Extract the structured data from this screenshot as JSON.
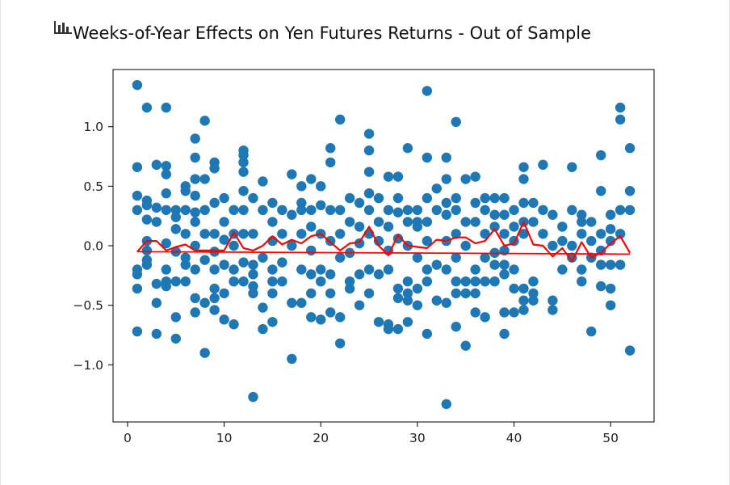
{
  "chart_data": {
    "type": "scatter",
    "title": "Weeks-of-Year Effects on Yen Futures Returns - Out of Sample",
    "xlabel": "",
    "ylabel": "",
    "xlim": [
      -1.5,
      54.5
    ],
    "ylim": [
      -1.48,
      1.48
    ],
    "x_ticks": [
      0,
      10,
      20,
      30,
      40,
      50
    ],
    "x_tick_labels": [
      "0",
      "10",
      "20",
      "30",
      "40",
      "50"
    ],
    "y_ticks": [
      -1.0,
      -0.5,
      0.0,
      0.5,
      1.0
    ],
    "y_tick_labels": [
      "−1.0",
      "−0.5",
      "0.0",
      "0.5",
      "1.0"
    ],
    "grid": false,
    "colors": {
      "scatter": "#1f77b4",
      "mean_line": "#ff0000",
      "fit_line": "#ff0000"
    },
    "scatter_series": {
      "points": [
        [
          1,
          1.35
        ],
        [
          1,
          0.66
        ],
        [
          1,
          0.42
        ],
        [
          1,
          0.3
        ],
        [
          1,
          -0.2
        ],
        [
          1,
          -0.24
        ],
        [
          1,
          -0.36
        ],
        [
          1,
          -0.72
        ],
        [
          2,
          1.16
        ],
        [
          2,
          0.38
        ],
        [
          2,
          0.34
        ],
        [
          2,
          0.22
        ],
        [
          2,
          0.04
        ],
        [
          2,
          -0.04
        ],
        [
          2,
          -0.12
        ],
        [
          2,
          -0.16
        ],
        [
          3,
          0.68
        ],
        [
          3,
          0.32
        ],
        [
          3,
          0.2
        ],
        [
          3,
          -0.32
        ],
        [
          3,
          -0.48
        ],
        [
          3,
          -0.74
        ],
        [
          4,
          1.16
        ],
        [
          4,
          0.67
        ],
        [
          4,
          0.6
        ],
        [
          4,
          0.44
        ],
        [
          4,
          0.3
        ],
        [
          4,
          0.02
        ],
        [
          4,
          -0.2
        ],
        [
          4,
          -0.3
        ],
        [
          4,
          -0.34
        ],
        [
          5,
          0.3
        ],
        [
          5,
          0.24
        ],
        [
          5,
          0.14
        ],
        [
          5,
          -0.05
        ],
        [
          5,
          -0.3
        ],
        [
          5,
          -0.6
        ],
        [
          5,
          -0.78
        ],
        [
          6,
          0.5
        ],
        [
          6,
          0.46
        ],
        [
          6,
          0.3
        ],
        [
          6,
          0.1
        ],
        [
          6,
          -0.1
        ],
        [
          6,
          -0.16
        ],
        [
          6,
          -0.3
        ],
        [
          7,
          0.9
        ],
        [
          7,
          0.74
        ],
        [
          7,
          0.56
        ],
        [
          7,
          0.42
        ],
        [
          7,
          0.28
        ],
        [
          7,
          0.2
        ],
        [
          7,
          0.0
        ],
        [
          7,
          -0.2
        ],
        [
          7,
          -0.44
        ],
        [
          7,
          -0.56
        ],
        [
          8,
          1.05
        ],
        [
          8,
          0.56
        ],
        [
          8,
          0.3
        ],
        [
          8,
          0.1
        ],
        [
          8,
          -0.12
        ],
        [
          8,
          -0.48
        ],
        [
          8,
          -0.9
        ],
        [
          9,
          0.7
        ],
        [
          9,
          0.65
        ],
        [
          9,
          0.36
        ],
        [
          9,
          0.1
        ],
        [
          9,
          -0.05
        ],
        [
          9,
          -0.2
        ],
        [
          9,
          -0.36
        ],
        [
          9,
          -0.44
        ],
        [
          9,
          -0.54
        ],
        [
          10,
          0.4
        ],
        [
          10,
          0.2
        ],
        [
          10,
          0.05
        ],
        [
          10,
          -0.16
        ],
        [
          10,
          -0.4
        ],
        [
          10,
          -0.62
        ],
        [
          11,
          0.3
        ],
        [
          11,
          0.1
        ],
        [
          11,
          0.0
        ],
        [
          11,
          -0.2
        ],
        [
          11,
          -0.3
        ],
        [
          11,
          -0.66
        ],
        [
          12,
          0.8
        ],
        [
          12,
          0.76
        ],
        [
          12,
          0.7
        ],
        [
          12,
          0.62
        ],
        [
          12,
          0.46
        ],
        [
          12,
          0.3
        ],
        [
          12,
          0.1
        ],
        [
          12,
          -0.14
        ],
        [
          12,
          -0.3
        ],
        [
          13,
          0.4
        ],
        [
          13,
          0.1
        ],
        [
          13,
          -0.16
        ],
        [
          13,
          -0.24
        ],
        [
          13,
          -0.34
        ],
        [
          13,
          -0.4
        ],
        [
          13,
          -1.27
        ],
        [
          14,
          0.54
        ],
        [
          14,
          0.3
        ],
        [
          14,
          -0.1
        ],
        [
          14,
          -0.52
        ],
        [
          14,
          -0.7
        ],
        [
          15,
          0.36
        ],
        [
          15,
          0.2
        ],
        [
          15,
          0.04
        ],
        [
          15,
          -0.2
        ],
        [
          15,
          -0.3
        ],
        [
          15,
          -0.4
        ],
        [
          15,
          -0.64
        ],
        [
          16,
          0.3
        ],
        [
          16,
          0.1
        ],
        [
          16,
          -0.14
        ],
        [
          16,
          -0.3
        ],
        [
          17,
          0.6
        ],
        [
          17,
          0.26
        ],
        [
          17,
          0.0
        ],
        [
          17,
          -0.48
        ],
        [
          17,
          -0.95
        ],
        [
          18,
          0.5
        ],
        [
          18,
          0.36
        ],
        [
          18,
          0.3
        ],
        [
          18,
          0.1
        ],
        [
          18,
          -0.2
        ],
        [
          18,
          -0.48
        ],
        [
          19,
          0.56
        ],
        [
          19,
          0.3
        ],
        [
          19,
          0.16
        ],
        [
          19,
          -0.04
        ],
        [
          19,
          -0.24
        ],
        [
          19,
          -0.4
        ],
        [
          19,
          -0.6
        ],
        [
          20,
          0.5
        ],
        [
          20,
          0.34
        ],
        [
          20,
          0.1
        ],
        [
          20,
          -0.2
        ],
        [
          20,
          -0.3
        ],
        [
          20,
          -0.62
        ],
        [
          21,
          0.82
        ],
        [
          21,
          0.7
        ],
        [
          21,
          0.3
        ],
        [
          21,
          0.04
        ],
        [
          21,
          -0.24
        ],
        [
          21,
          -0.4
        ],
        [
          21,
          -0.56
        ],
        [
          22,
          1.06
        ],
        [
          22,
          0.3
        ],
        [
          22,
          0.1
        ],
        [
          22,
          -0.1
        ],
        [
          22,
          -0.6
        ],
        [
          22,
          -0.82
        ],
        [
          23,
          0.4
        ],
        [
          23,
          0.2
        ],
        [
          23,
          -0.06
        ],
        [
          23,
          -0.3
        ],
        [
          23,
          -0.36
        ],
        [
          24,
          0.36
        ],
        [
          24,
          0.16
        ],
        [
          24,
          0.02
        ],
        [
          24,
          -0.24
        ],
        [
          24,
          -0.5
        ],
        [
          25,
          0.94
        ],
        [
          25,
          0.8
        ],
        [
          25,
          0.62
        ],
        [
          25,
          0.44
        ],
        [
          25,
          0.3
        ],
        [
          25,
          0.1
        ],
        [
          25,
          -0.2
        ],
        [
          25,
          -0.4
        ],
        [
          26,
          0.4
        ],
        [
          26,
          0.2
        ],
        [
          26,
          0.04
        ],
        [
          26,
          -0.24
        ],
        [
          26,
          -0.64
        ],
        [
          27,
          0.58
        ],
        [
          27,
          0.3
        ],
        [
          27,
          0.16
        ],
        [
          27,
          -0.04
        ],
        [
          27,
          -0.2
        ],
        [
          27,
          -0.66
        ],
        [
          27,
          -0.7
        ],
        [
          28,
          0.58
        ],
        [
          28,
          0.4
        ],
        [
          28,
          0.28
        ],
        [
          28,
          0.06
        ],
        [
          28,
          -0.36
        ],
        [
          28,
          -0.44
        ],
        [
          28,
          -0.7
        ],
        [
          29,
          0.82
        ],
        [
          29,
          0.3
        ],
        [
          29,
          0.2
        ],
        [
          29,
          0.0
        ],
        [
          29,
          -0.3
        ],
        [
          29,
          -0.4
        ],
        [
          29,
          -0.46
        ],
        [
          29,
          -0.64
        ],
        [
          30,
          0.3
        ],
        [
          30,
          0.2
        ],
        [
          30,
          0.16
        ],
        [
          30,
          -0.1
        ],
        [
          30,
          -0.36
        ],
        [
          30,
          -0.5
        ],
        [
          31,
          1.3
        ],
        [
          31,
          0.74
        ],
        [
          31,
          0.4
        ],
        [
          31,
          0.2
        ],
        [
          31,
          0.04
        ],
        [
          31,
          -0.2
        ],
        [
          31,
          -0.3
        ],
        [
          31,
          -0.74
        ],
        [
          32,
          0.48
        ],
        [
          32,
          0.3
        ],
        [
          32,
          -0.16
        ],
        [
          32,
          -0.46
        ],
        [
          33,
          0.74
        ],
        [
          33,
          0.56
        ],
        [
          33,
          0.36
        ],
        [
          33,
          0.26
        ],
        [
          33,
          0.04
        ],
        [
          33,
          -0.2
        ],
        [
          33,
          -0.48
        ],
        [
          33,
          -1.33
        ],
        [
          34,
          1.04
        ],
        [
          34,
          0.4
        ],
        [
          34,
          0.3
        ],
        [
          34,
          0.1
        ],
        [
          34,
          -0.1
        ],
        [
          34,
          -0.3
        ],
        [
          34,
          -0.4
        ],
        [
          34,
          -0.68
        ],
        [
          35,
          0.56
        ],
        [
          35,
          0.2
        ],
        [
          35,
          0.0
        ],
        [
          35,
          -0.3
        ],
        [
          35,
          -0.4
        ],
        [
          35,
          -0.84
        ],
        [
          36,
          0.58
        ],
        [
          36,
          0.36
        ],
        [
          36,
          0.2
        ],
        [
          36,
          -0.2
        ],
        [
          36,
          -0.3
        ],
        [
          36,
          -0.4
        ],
        [
          36,
          -0.56
        ],
        [
          37,
          0.4
        ],
        [
          37,
          0.3
        ],
        [
          37,
          0.1
        ],
        [
          37,
          -0.1
        ],
        [
          37,
          -0.3
        ],
        [
          37,
          -0.6
        ],
        [
          38,
          0.4
        ],
        [
          38,
          0.26
        ],
        [
          38,
          0.16
        ],
        [
          38,
          -0.06
        ],
        [
          38,
          -0.16
        ],
        [
          38,
          -0.3
        ],
        [
          39,
          0.4
        ],
        [
          39,
          0.26
        ],
        [
          39,
          0.1
        ],
        [
          39,
          -0.04
        ],
        [
          39,
          -0.16
        ],
        [
          39,
          -0.24
        ],
        [
          39,
          -0.56
        ],
        [
          39,
          -0.74
        ],
        [
          40,
          0.3
        ],
        [
          40,
          0.16
        ],
        [
          40,
          0.04
        ],
        [
          40,
          -0.2
        ],
        [
          40,
          -0.36
        ],
        [
          40,
          -0.56
        ],
        [
          41,
          0.66
        ],
        [
          41,
          0.56
        ],
        [
          41,
          0.36
        ],
        [
          41,
          0.2
        ],
        [
          41,
          0.1
        ],
        [
          41,
          -0.36
        ],
        [
          41,
          -0.46
        ],
        [
          41,
          -0.54
        ],
        [
          42,
          0.36
        ],
        [
          42,
          0.2
        ],
        [
          42,
          -0.3
        ],
        [
          42,
          -0.4
        ],
        [
          42,
          -0.46
        ],
        [
          43,
          0.68
        ],
        [
          43,
          0.3
        ],
        [
          43,
          0.1
        ],
        [
          44,
          0.26
        ],
        [
          44,
          0.0
        ],
        [
          44,
          -0.46
        ],
        [
          44,
          -0.54
        ],
        [
          45,
          0.16
        ],
        [
          45,
          0.04
        ],
        [
          45,
          -0.2
        ],
        [
          46,
          0.66
        ],
        [
          46,
          0.3
        ],
        [
          46,
          0.0
        ],
        [
          46,
          -0.1
        ],
        [
          47,
          0.26
        ],
        [
          47,
          0.2
        ],
        [
          47,
          0.1
        ],
        [
          47,
          -0.2
        ],
        [
          47,
          -0.3
        ],
        [
          48,
          0.2
        ],
        [
          48,
          0.04
        ],
        [
          48,
          -0.1
        ],
        [
          48,
          -0.72
        ],
        [
          49,
          0.76
        ],
        [
          49,
          0.46
        ],
        [
          49,
          0.1
        ],
        [
          49,
          -0.04
        ],
        [
          49,
          -0.16
        ],
        [
          49,
          -0.34
        ],
        [
          50,
          0.26
        ],
        [
          50,
          0.14
        ],
        [
          50,
          0.04
        ],
        [
          50,
          -0.16
        ],
        [
          50,
          -0.36
        ],
        [
          50,
          -0.5
        ],
        [
          51,
          1.16
        ],
        [
          51,
          1.06
        ],
        [
          51,
          0.3
        ],
        [
          51,
          0.1
        ],
        [
          51,
          -0.16
        ],
        [
          52,
          0.82
        ],
        [
          52,
          0.46
        ],
        [
          52,
          0.3
        ],
        [
          52,
          -0.88
        ]
      ]
    },
    "mean_line": {
      "x": [
        1,
        2,
        3,
        4,
        5,
        6,
        7,
        8,
        9,
        10,
        11,
        12,
        13,
        14,
        15,
        16,
        17,
        18,
        19,
        20,
        21,
        22,
        23,
        24,
        25,
        26,
        27,
        28,
        29,
        30,
        31,
        32,
        33,
        34,
        35,
        36,
        37,
        38,
        39,
        40,
        41,
        42,
        43,
        44,
        45,
        46,
        47,
        48,
        49,
        50,
        51,
        52
      ],
      "y": [
        -0.05,
        0.04,
        0.04,
        -0.04,
        -0.01,
        0.01,
        -0.04,
        -0.04,
        -0.04,
        -0.04,
        0.11,
        -0.02,
        -0.04,
        0.0,
        0.08,
        0.01,
        0.05,
        0.02,
        0.08,
        0.1,
        0.03,
        -0.04,
        0.02,
        0.03,
        0.16,
        0.0,
        -0.08,
        0.09,
        0.0,
        -0.01,
        -0.02,
        0.05,
        0.04,
        0.07,
        0.07,
        0.02,
        0.04,
        0.14,
        0.0,
        0.02,
        0.2,
        0.01,
        0.0,
        -0.09,
        -0.02,
        -0.13,
        0.03,
        -0.1,
        -0.06,
        0.02,
        0.08,
        -0.06
      ]
    },
    "fit_line": {
      "x": [
        1,
        52
      ],
      "y": [
        -0.05,
        -0.07
      ]
    }
  }
}
